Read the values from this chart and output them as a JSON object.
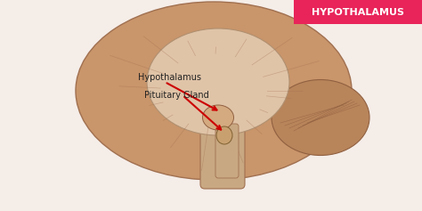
{
  "bg_color": "#f5ede8",
  "title_box_color": "#e8245a",
  "title_text": "HYPOTHALAMUS",
  "title_text_color": "#ffffff",
  "title_fontsize": 8,
  "label1": "Hypothalamus",
  "label2": "Pituitary Gland",
  "label_color": "#222222",
  "label_fontsize": 7,
  "arrow_color": "#cc0000",
  "fig_width": 4.74,
  "fig_height": 2.37,
  "dpi": 100,
  "brain_main_color": "#c9956a",
  "brain_inner_color": "#e0c4a8",
  "brain_highlight": "#d4aa80"
}
